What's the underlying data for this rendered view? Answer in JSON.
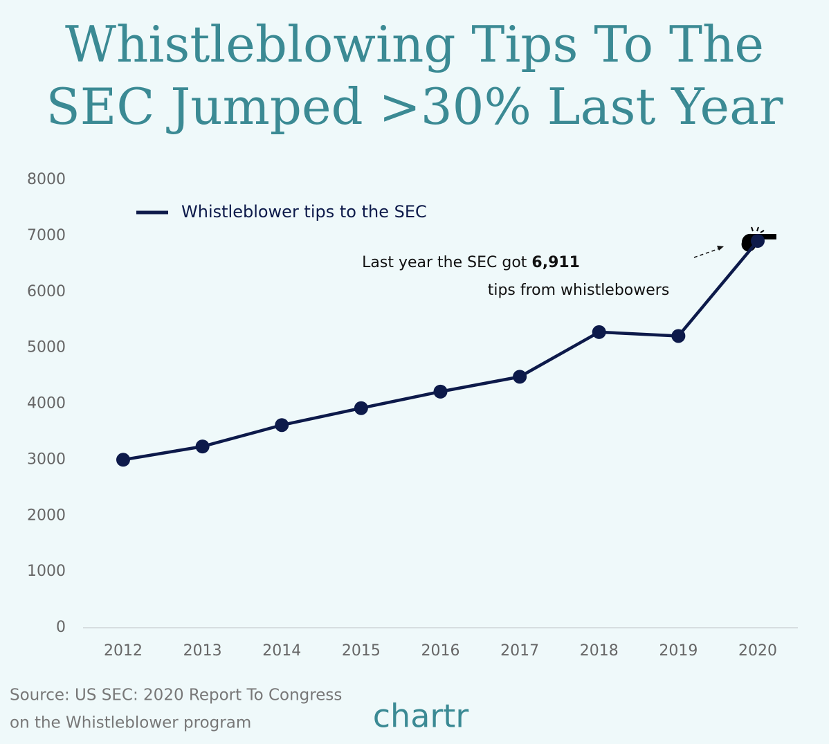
{
  "chart_data": {
    "type": "line",
    "title": [
      "Whistleblowing Tips To The",
      "SEC Jumped >30% Last Year"
    ],
    "categories": [
      "2012",
      "2013",
      "2014",
      "2015",
      "2016",
      "2017",
      "2018",
      "2019",
      "2020"
    ],
    "series": [
      {
        "name": "Whistleblower tips to the SEC",
        "color": "#0d1a4a",
        "values": [
          3001,
          3238,
          3620,
          3923,
          4218,
          4484,
          5282,
          5212,
          6911
        ]
      }
    ],
    "ylim": [
      0,
      8000
    ],
    "yticks": [
      0,
      1000,
      2000,
      3000,
      4000,
      5000,
      6000,
      7000,
      8000
    ],
    "grid": false,
    "legend": "top-left",
    "annotation": {
      "text_before": "Last year the SEC got",
      "highlight": "6,911",
      "text_after": "tips from whistlebowers"
    },
    "source": [
      "Source: US SEC: 2020 Report To Congress",
      "on the Whistleblower program"
    ],
    "brand": "chartr"
  }
}
